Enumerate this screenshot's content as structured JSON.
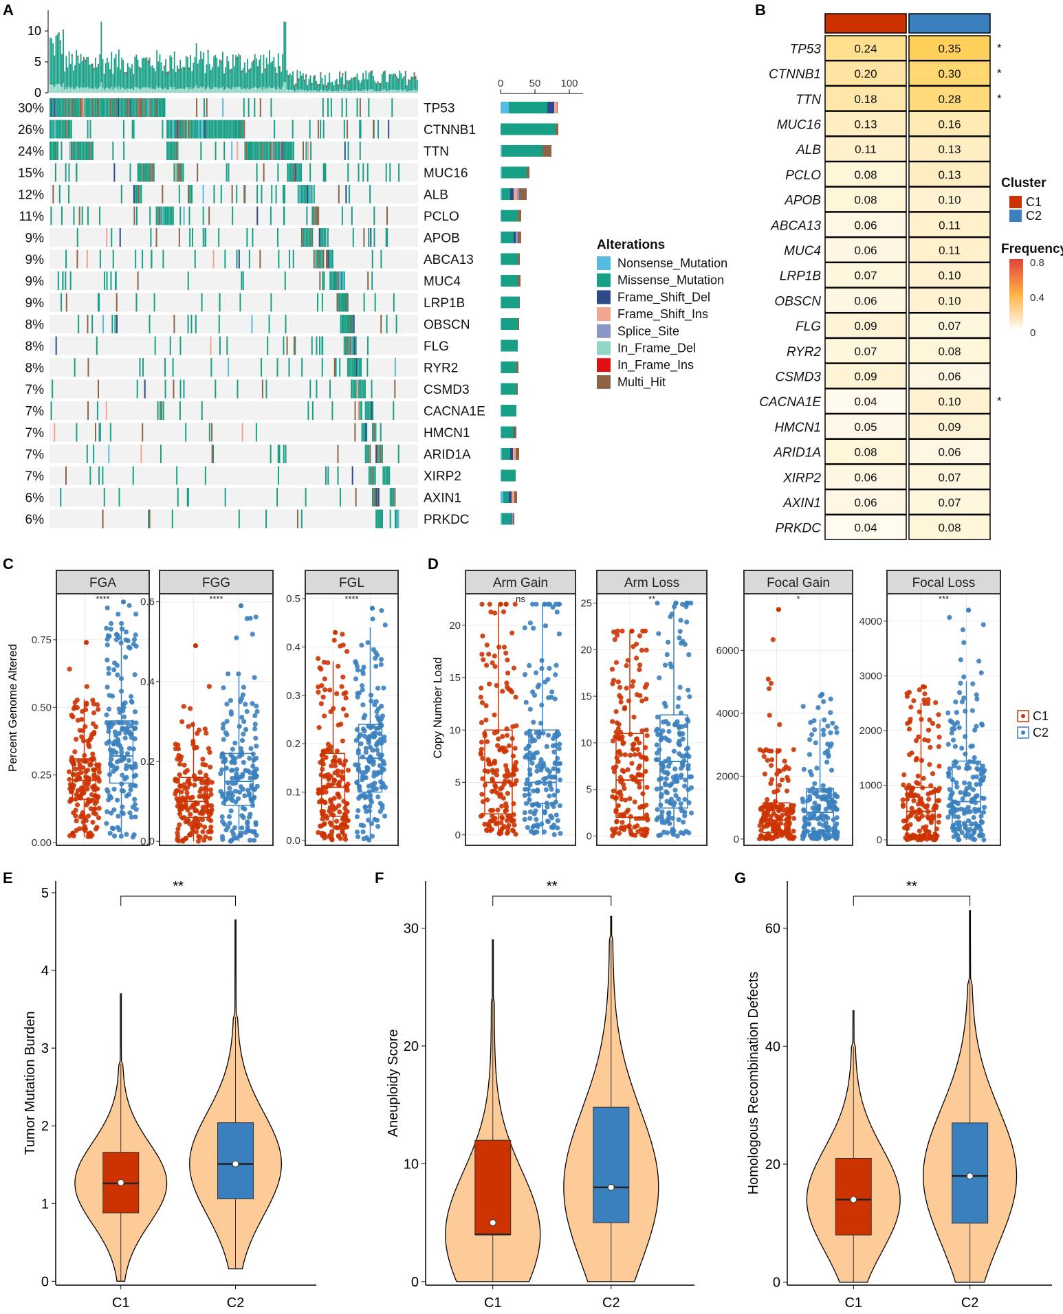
{
  "panels": {
    "A": "A",
    "B": "B",
    "C": "C",
    "D": "D",
    "E": "E",
    "F": "F",
    "G": "G"
  },
  "colors": {
    "c1": "#CC3300",
    "c2": "#3A80BE",
    "violin": "#FDCB98",
    "grid": "#EBEBEB"
  },
  "chart_data": [
    {
      "id": "A",
      "type": "table",
      "subtype": "oncoplot",
      "top_axis_ticks": [
        "0",
        "5",
        "10"
      ],
      "top_axis_range": [
        0,
        12
      ],
      "right_axis_ticks": [
        "0",
        "50",
        "100"
      ],
      "genes": [
        "TP53",
        "CTNNB1",
        "TTN",
        "MUC16",
        "ALB",
        "PCLO",
        "APOB",
        "ABCA13",
        "MUC4",
        "LRP1B",
        "OBSCN",
        "FLG",
        "RYR2",
        "CSMD3",
        "CACNA1E",
        "HMCN1",
        "ARID1A",
        "XIRP2",
        "AXIN1",
        "PRKDC"
      ],
      "percents": [
        "30%",
        "26%",
        "24%",
        "15%",
        "12%",
        "11%",
        "9%",
        "9%",
        "9%",
        "9%",
        "8%",
        "8%",
        "8%",
        "7%",
        "7%",
        "7%",
        "7%",
        "7%",
        "6%",
        "6%"
      ],
      "legend_title": "Alterations",
      "alterations": [
        {
          "name": "Nonsense_Mutation",
          "color": "#56BBE0"
        },
        {
          "name": "Missense_Mutation",
          "color": "#18A086"
        },
        {
          "name": "Frame_Shift_Del",
          "color": "#2F4A8A"
        },
        {
          "name": "Frame_Shift_Ins",
          "color": "#F2A48E"
        },
        {
          "name": "Splice_Site",
          "color": "#8A97C4"
        },
        {
          "name": "In_Frame_Del",
          "color": "#91D5C4"
        },
        {
          "name": "In_Frame_Ins",
          "color": "#E01010"
        },
        {
          "name": "Multi_Hit",
          "color": "#8E6447"
        }
      ],
      "bar_counts": [
        [
          12,
          56,
          10,
          4,
          0,
          0,
          0,
          1
        ],
        [
          0,
          80,
          0,
          0,
          0,
          0,
          0,
          4
        ],
        [
          2,
          59,
          0,
          0,
          0,
          0,
          0,
          13
        ],
        [
          2,
          36,
          0,
          0,
          0,
          0,
          0,
          4
        ],
        [
          2,
          12,
          5,
          5,
          3,
          0,
          0,
          11
        ],
        [
          1,
          24,
          0,
          0,
          0,
          0,
          0,
          5
        ],
        [
          1,
          18,
          3,
          0,
          3,
          0,
          0,
          5
        ],
        [
          1,
          24,
          0,
          0,
          0,
          0,
          0,
          3
        ],
        [
          1,
          24,
          0,
          0,
          0,
          0,
          0,
          4
        ],
        [
          1,
          26,
          0,
          0,
          0,
          0,
          0,
          1
        ],
        [
          1,
          24,
          0,
          0,
          0,
          0,
          0,
          2
        ],
        [
          1,
          24,
          0,
          0,
          0,
          0,
          0,
          0
        ],
        [
          1,
          22,
          0,
          0,
          0,
          0,
          0,
          3
        ],
        [
          1,
          22,
          0,
          0,
          0,
          0,
          0,
          2
        ],
        [
          1,
          22,
          0,
          0,
          0,
          0,
          0,
          0
        ],
        [
          1,
          18,
          1,
          0,
          0,
          0,
          0,
          3
        ],
        [
          2,
          12,
          4,
          4,
          0,
          0,
          0,
          5
        ],
        [
          1,
          21,
          0,
          0,
          0,
          0,
          0,
          0
        ],
        [
          4,
          8,
          4,
          4,
          0,
          0,
          0,
          4
        ],
        [
          2,
          13,
          1,
          0,
          2,
          0,
          0,
          2
        ]
      ]
    },
    {
      "id": "B",
      "type": "heatmap",
      "genes": [
        "TP53",
        "CTNNB1",
        "TTN",
        "MUC16",
        "ALB",
        "PCLO",
        "APOB",
        "ABCA13",
        "MUC4",
        "LRP1B",
        "OBSCN",
        "FLG",
        "RYR2",
        "CSMD3",
        "CACNA1E",
        "HMCN1",
        "ARID1A",
        "XIRP2",
        "AXIN1",
        "PRKDC"
      ],
      "C1": [
        "0.24",
        "0.20",
        "0.18",
        "0.13",
        "0.11",
        "0.08",
        "0.08",
        "0.06",
        "0.06",
        "0.07",
        "0.06",
        "0.09",
        "0.07",
        "0.09",
        "0.04",
        "0.05",
        "0.08",
        "0.06",
        "0.06",
        "0.04"
      ],
      "C2": [
        "0.35",
        "0.30",
        "0.28",
        "0.16",
        "0.13",
        "0.13",
        "0.10",
        "0.11",
        "0.11",
        "0.10",
        "0.10",
        "0.07",
        "0.08",
        "0.06",
        "0.10",
        "0.09",
        "0.06",
        "0.07",
        "0.07",
        "0.08"
      ],
      "star": [
        "*",
        "*",
        "*",
        "",
        "",
        "",
        "",
        "",
        "",
        "",
        "",
        "",
        "",
        "",
        "*",
        "",
        "",
        "",
        "",
        ""
      ],
      "legend": {
        "cluster_title": "Cluster",
        "clusters": [
          "C1",
          "C2"
        ],
        "freq_title": "Frequency",
        "freq_ticks": [
          "0.8",
          "0.4",
          "0"
        ]
      }
    },
    {
      "id": "C",
      "type": "scatter",
      "subtype": "boxplot-jitter",
      "ylabel": "Percent Genome Altered",
      "facets": [
        {
          "name": "FGA",
          "sig": "****",
          "yrange": [
            -0.01,
            0.92
          ],
          "ticks": [
            "0.00",
            "0.25",
            "0.50",
            "0.75"
          ],
          "tickvals": [
            0,
            0.25,
            0.5,
            0.75
          ],
          "C1": {
            "q1": 0.16,
            "med": 0.23,
            "q3": 0.31,
            "lo": 0.02,
            "hi": 0.53,
            "max": 0.74
          },
          "C2": {
            "q1": 0.22,
            "med": 0.32,
            "q3": 0.45,
            "lo": 0.02,
            "hi": 0.8,
            "max": 0.89
          }
        },
        {
          "name": "FGG",
          "sig": "****",
          "yrange": [
            -0.01,
            0.62
          ],
          "ticks": [
            "0.0",
            "0.2",
            "0.4",
            "0.6"
          ],
          "tickvals": [
            0,
            0.2,
            0.4,
            0.6
          ],
          "C1": {
            "q1": 0.06,
            "med": 0.1,
            "q3": 0.16,
            "lo": 0.0,
            "hi": 0.3,
            "max": 0.49
          },
          "C2": {
            "q1": 0.09,
            "med": 0.15,
            "q3": 0.22,
            "lo": 0.0,
            "hi": 0.42,
            "max": 0.59
          }
        },
        {
          "name": "FGL",
          "sig": "****",
          "yrange": [
            -0.01,
            0.51
          ],
          "ticks": [
            "0.0",
            "0.1",
            "0.2",
            "0.3",
            "0.4",
            "0.5"
          ],
          "tickvals": [
            0,
            0.1,
            0.2,
            0.3,
            0.4,
            0.5
          ],
          "C1": {
            "q1": 0.05,
            "med": 0.11,
            "q3": 0.18,
            "lo": 0.0,
            "hi": 0.37,
            "max": 0.43
          },
          "C2": {
            "q1": 0.1,
            "med": 0.17,
            "q3": 0.24,
            "lo": 0.0,
            "hi": 0.44,
            "max": 0.48
          }
        }
      ]
    },
    {
      "id": "D",
      "type": "scatter",
      "subtype": "boxplot-jitter",
      "ylabel": "Copy Number Load",
      "legend": [
        "C1",
        "C2"
      ],
      "facets": [
        {
          "name": "Arm Gain",
          "sig": "ns",
          "yrange": [
            -1,
            23
          ],
          "ticks": [
            "0",
            "5",
            "10",
            "15",
            "20"
          ],
          "tickvals": [
            0,
            5,
            10,
            15,
            20
          ],
          "C1": {
            "q1": 2,
            "med": 5,
            "q3": 10,
            "lo": 0,
            "hi": 22,
            "max": 22
          },
          "C2": {
            "q1": 3,
            "med": 5,
            "q3": 10,
            "lo": 0,
            "hi": 22,
            "max": 22
          }
        },
        {
          "name": "Arm Loss",
          "sig": "**",
          "yrange": [
            -1,
            26
          ],
          "ticks": [
            "0",
            "5",
            "10",
            "15",
            "20",
            "25"
          ],
          "tickvals": [
            0,
            5,
            10,
            15,
            20,
            25
          ],
          "C1": {
            "q1": 2,
            "med": 6,
            "q3": 11,
            "lo": 0,
            "hi": 22,
            "max": 22
          },
          "C2": {
            "q1": 3,
            "med": 8,
            "q3": 13,
            "lo": 0,
            "hi": 25,
            "max": 25
          }
        },
        {
          "name": "Focal Gain",
          "sig": "*",
          "yrange": [
            -200,
            7800
          ],
          "ticks": [
            "0",
            "2000",
            "4000",
            "6000"
          ],
          "tickvals": [
            0,
            2000,
            4000,
            6000
          ],
          "C1": {
            "q1": 200,
            "med": 600,
            "q3": 1150,
            "lo": 0,
            "hi": 2900,
            "max": 7300
          },
          "C2": {
            "q1": 250,
            "med": 850,
            "q3": 1600,
            "lo": 0,
            "hi": 3800,
            "max": 4600
          }
        },
        {
          "name": "Focal Loss",
          "sig": "***",
          "yrange": [
            -100,
            4500
          ],
          "ticks": [
            "0",
            "1000",
            "2000",
            "3000",
            "4000"
          ],
          "tickvals": [
            0,
            1000,
            2000,
            3000,
            4000
          ],
          "C1": {
            "q1": 80,
            "med": 520,
            "q3": 960,
            "lo": 0,
            "hi": 2500,
            "max": 2800
          },
          "C2": {
            "q1": 270,
            "med": 700,
            "q3": 1440,
            "lo": 0,
            "hi": 2900,
            "max": 4200
          }
        }
      ]
    },
    {
      "id": "E",
      "type": "area",
      "subtype": "violin",
      "ylabel": "Tumor Mutation Burden",
      "categories": [
        "C1",
        "C2"
      ],
      "sig": "**",
      "yrange": [
        -0.05,
        5.15
      ],
      "ticks": [
        "0",
        "1",
        "2",
        "3",
        "4",
        "5"
      ],
      "tickvals": [
        0,
        1,
        2,
        3,
        4,
        5
      ],
      "C1": {
        "min": 0,
        "q1": 0.88,
        "med": 1.26,
        "q3": 1.66,
        "hi": 2.8,
        "max": 3.7,
        "mean": 1.27
      },
      "C2": {
        "min": 0.16,
        "q1": 1.06,
        "med": 1.51,
        "q3": 2.04,
        "hi": 3.4,
        "max": 4.65,
        "mean": 1.51
      }
    },
    {
      "id": "F",
      "type": "area",
      "subtype": "violin",
      "ylabel": "Aneuploidy Score",
      "categories": [
        "C1",
        "C2"
      ],
      "sig": "**",
      "yrange": [
        -0.3,
        34
      ],
      "ticks": [
        "0",
        "10",
        "20",
        "30"
      ],
      "tickvals": [
        0,
        10,
        20,
        30
      ],
      "C1": {
        "min": 0,
        "q1": 4,
        "med": 4,
        "q3": 12,
        "hi": 24,
        "max": 29,
        "mean": 5
      },
      "C2": {
        "min": 0,
        "q1": 5,
        "med": 8,
        "q3": 14.8,
        "hi": 29,
        "max": 31,
        "mean": 8
      }
    },
    {
      "id": "G",
      "type": "area",
      "subtype": "violin",
      "ylabel": "Homologous Recombination Defects",
      "categories": [
        "C1",
        "C2"
      ],
      "sig": "**",
      "yrange": [
        -0.5,
        68
      ],
      "ticks": [
        "0",
        "20",
        "40",
        "60"
      ],
      "tickvals": [
        0,
        20,
        40,
        60
      ],
      "C1": {
        "min": 0,
        "q1": 8,
        "med": 14,
        "q3": 21,
        "hi": 40,
        "max": 46,
        "mean": 14
      },
      "C2": {
        "min": 0,
        "q1": 10,
        "med": 18,
        "q3": 27,
        "hi": 51,
        "max": 63,
        "mean": 18
      }
    }
  ]
}
